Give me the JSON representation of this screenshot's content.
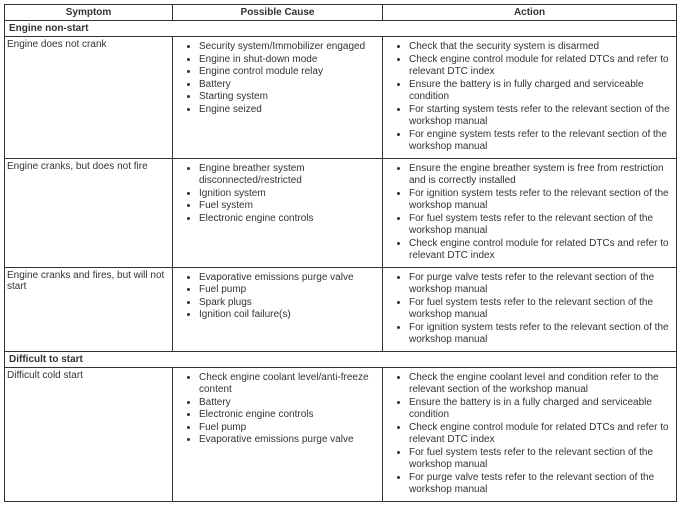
{
  "headers": {
    "symptom": "Symptom",
    "cause": "Possible Cause",
    "action": "Action"
  },
  "sections": [
    {
      "title": "Engine non-start",
      "rows": [
        {
          "symptom": "Engine does not crank",
          "causes": [
            "Security system/Immobilizer engaged",
            "Engine in shut-down mode",
            "Engine control module relay",
            "Battery",
            "Starting system",
            "Engine seized"
          ],
          "actions": [
            "Check that the security system is disarmed",
            "Check engine control module for related DTCs and refer to relevant DTC index",
            "Ensure the battery is in fully charged and serviceable condition",
            "For starting system tests refer to the relevant section of the workshop manual",
            "For engine system tests refer to the relevant section of the workshop manual"
          ]
        },
        {
          "symptom": "Engine cranks, but does not fire",
          "causes": [
            "Engine breather system disconnected/restricted",
            "Ignition system",
            "Fuel system",
            "Electronic engine controls"
          ],
          "actions": [
            "Ensure the engine breather system is free from restriction and is correctly installed",
            "For ignition system tests refer to the relevant section of the workshop manual",
            "For fuel system tests refer to the relevant section of the workshop manual",
            "Check engine control module for related DTCs and refer to relevant DTC index"
          ]
        },
        {
          "symptom": "Engine cranks and fires, but will not start",
          "causes": [
            "Evaporative emissions purge valve",
            "Fuel pump",
            "Spark plugs",
            "Ignition coil failure(s)"
          ],
          "actions": [
            "For purge valve tests refer to the relevant section of the workshop manual",
            "For fuel system tests refer to the relevant section of the workshop manual",
            "For ignition system tests refer to the relevant section of the workshop manual"
          ]
        }
      ]
    },
    {
      "title": "Difficult to start",
      "rows": [
        {
          "symptom": "Difficult cold start",
          "causes": [
            "Check engine coolant level/anti-freeze content",
            "Battery",
            "Electronic engine controls",
            "Fuel pump",
            "Evaporative emissions purge valve"
          ],
          "actions": [
            "Check the engine coolant level and condition refer to the relevant section of the workshop manual",
            "Ensure the battery is in a fully charged and serviceable condition",
            "Check engine control module for related DTCs and refer to relevant DTC index",
            "For fuel system tests refer to the relevant section of the workshop manual",
            "For purge valve tests refer to the relevant section of the workshop manual"
          ]
        }
      ]
    }
  ]
}
